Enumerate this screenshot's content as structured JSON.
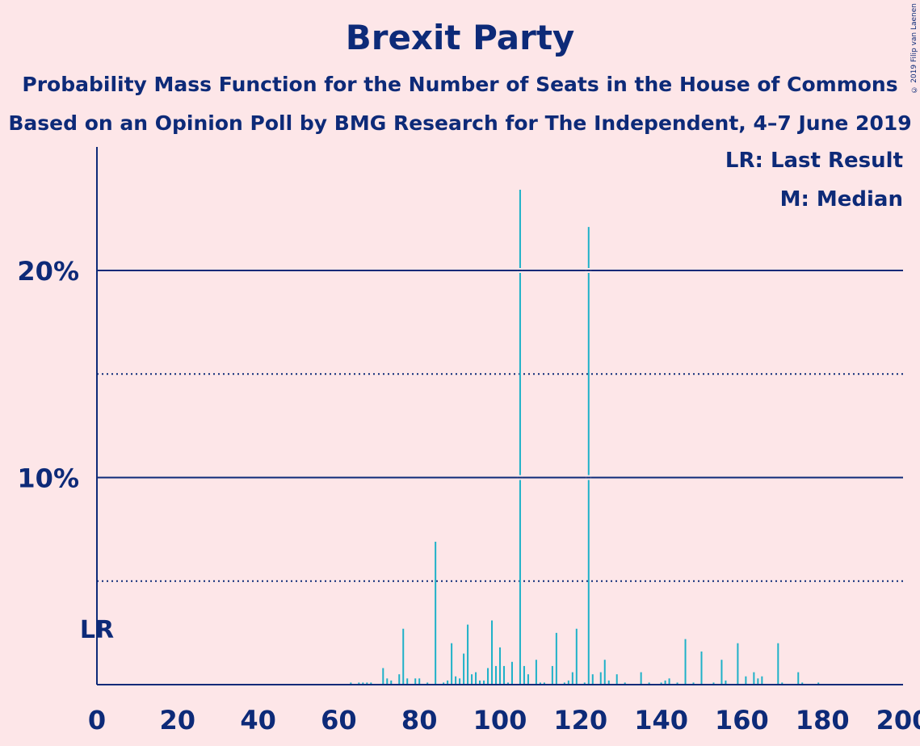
{
  "header": {
    "title": "Brexit Party",
    "subtitle1": "Probability Mass Function for the Number of Seats in the House of Commons",
    "subtitle2": "Based on an Opinion Poll by BMG Research for The Independent, 4–7 June 2019",
    "copyright": "© 2019 Filip van Laenen"
  },
  "legend": {
    "last_result": "LR: Last Result",
    "median": "M: Median"
  },
  "colors": {
    "background": "#fde6e8",
    "text": "#0d2a78",
    "bar": "#1eb1c8"
  },
  "chart_data": {
    "type": "bar",
    "title": "Brexit Party",
    "xlabel": "",
    "ylabel": "",
    "xlim": [
      0,
      200
    ],
    "ylim": [
      0,
      26
    ],
    "x_ticks": [
      0,
      20,
      40,
      60,
      80,
      100,
      120,
      140,
      160,
      180,
      200
    ],
    "y_ticks": [
      {
        "value": 5,
        "label": "",
        "style": "dotted"
      },
      {
        "value": 10,
        "label": "10%",
        "style": "solid"
      },
      {
        "value": 15,
        "label": "",
        "style": "dotted"
      },
      {
        "value": 20,
        "label": "20%",
        "style": "solid"
      }
    ],
    "last_result": {
      "seat": 0,
      "label": "LR"
    },
    "median": {
      "seat": 105,
      "label": "M"
    },
    "series": [
      {
        "values_by_seat": [
          [
            63,
            0.1
          ],
          [
            65,
            0.1
          ],
          [
            66,
            0.1
          ],
          [
            67,
            0.1
          ],
          [
            68,
            0.1
          ],
          [
            71,
            0.8
          ],
          [
            72,
            0.3
          ],
          [
            73,
            0.2
          ],
          [
            75,
            0.5
          ],
          [
            76,
            2.7
          ],
          [
            77,
            0.3
          ],
          [
            79,
            0.3
          ],
          [
            80,
            0.3
          ],
          [
            82,
            0.1
          ],
          [
            84,
            6.9
          ],
          [
            86,
            0.1
          ],
          [
            87,
            0.2
          ],
          [
            88,
            2.0
          ],
          [
            89,
            0.4
          ],
          [
            90,
            0.3
          ],
          [
            91,
            1.5
          ],
          [
            92,
            2.9
          ],
          [
            93,
            0.5
          ],
          [
            94,
            0.6
          ],
          [
            95,
            0.2
          ],
          [
            96,
            0.2
          ],
          [
            97,
            0.8
          ],
          [
            98,
            3.1
          ],
          [
            99,
            0.9
          ],
          [
            100,
            1.8
          ],
          [
            101,
            0.9
          ],
          [
            102,
            0.1
          ],
          [
            103,
            1.1
          ],
          [
            105,
            23.9
          ],
          [
            106,
            0.9
          ],
          [
            107,
            0.5
          ],
          [
            109,
            1.2
          ],
          [
            110,
            0.1
          ],
          [
            111,
            0.1
          ],
          [
            113,
            0.9
          ],
          [
            114,
            2.5
          ],
          [
            116,
            0.1
          ],
          [
            117,
            0.2
          ],
          [
            118,
            0.6
          ],
          [
            119,
            2.7
          ],
          [
            121,
            0.1
          ],
          [
            122,
            22.1
          ],
          [
            123,
            0.5
          ],
          [
            125,
            0.6
          ],
          [
            126,
            1.2
          ],
          [
            127,
            0.2
          ],
          [
            129,
            0.5
          ],
          [
            131,
            0.1
          ],
          [
            135,
            0.6
          ],
          [
            137,
            0.1
          ],
          [
            140,
            0.1
          ],
          [
            141,
            0.2
          ],
          [
            142,
            0.3
          ],
          [
            144,
            0.1
          ],
          [
            146,
            2.2
          ],
          [
            148,
            0.1
          ],
          [
            150,
            1.6
          ],
          [
            153,
            0.1
          ],
          [
            155,
            1.2
          ],
          [
            156,
            0.2
          ],
          [
            159,
            2.0
          ],
          [
            161,
            0.4
          ],
          [
            163,
            0.6
          ],
          [
            164,
            0.3
          ],
          [
            165,
            0.4
          ],
          [
            169,
            2.0
          ],
          [
            170,
            0.1
          ],
          [
            174,
            0.6
          ],
          [
            175,
            0.1
          ],
          [
            179,
            0.1
          ]
        ]
      }
    ]
  }
}
